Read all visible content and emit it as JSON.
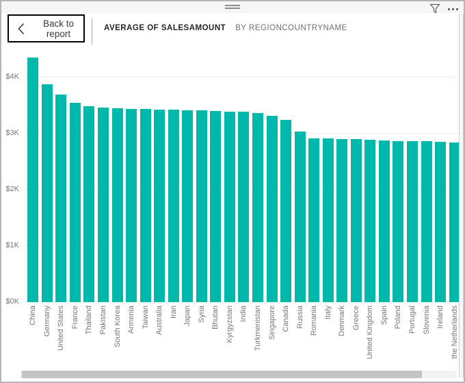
{
  "header": {
    "back_label": "Back to report",
    "title": "AVERAGE OF SALESAMOUNT",
    "subtitle": "BY REGIONCOUNTRYNAME"
  },
  "topbar": {
    "more_options_icon": "ellipsis",
    "filter_icon": "funnel",
    "drag_handle_icon": "double-bar"
  },
  "chart_data": {
    "type": "bar",
    "title": "Average of SalesAmount by RegionCountryName",
    "categories": [
      "China",
      "Germany",
      "United States",
      "France",
      "Thailand",
      "Pakistan",
      "South Korea",
      "Armenia",
      "Taiwan",
      "Australia",
      "Iran",
      "Japan",
      "Syria",
      "Bhutan",
      "Kyrgyzstan",
      "India",
      "Turkmenistan",
      "Singapore",
      "Canada",
      "Russia",
      "Romania",
      "Italy",
      "Denmark",
      "Greece",
      "United Kingdom",
      "Spain",
      "Poland",
      "Portugal",
      "Slovenia",
      "Ireland",
      "the Netherlands"
    ],
    "values": [
      4350,
      3880,
      3700,
      3550,
      3490,
      3460,
      3450,
      3440,
      3440,
      3430,
      3430,
      3420,
      3420,
      3400,
      3390,
      3390,
      3360,
      3320,
      3240,
      3040,
      2910,
      2910,
      2900,
      2900,
      2890,
      2880,
      2870,
      2860,
      2860,
      2850,
      2840
    ],
    "value_unit": "USD",
    "xlabel": "RegionCountryName",
    "ylabel": "Average of SalesAmount",
    "ylim": [
      0,
      4500
    ],
    "y_ticks": [
      {
        "value": 0,
        "label": "$0K"
      },
      {
        "value": 1000,
        "label": "$1K"
      },
      {
        "value": 2000,
        "label": "$2K"
      },
      {
        "value": 3000,
        "label": "$3K"
      },
      {
        "value": 4000,
        "label": "$4K"
      }
    ],
    "grid": true,
    "legend": false,
    "bar_color": "#01B8AA"
  },
  "colors": {
    "bar": "#01B8AA",
    "axis_text": "#777777",
    "gridline": "#ebebeb",
    "title_text": "#252423",
    "subtitle_text": "#6e6e6e",
    "window_border": "#b5b5b5"
  }
}
